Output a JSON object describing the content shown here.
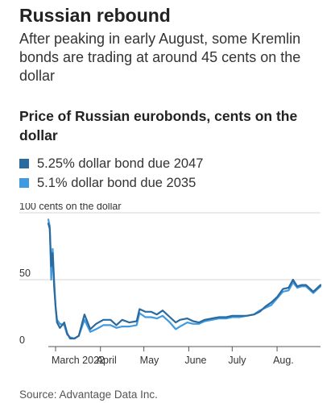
{
  "header": {
    "title": "Russian rebound",
    "subtitle": "After peaking in early August, some Kremlin bonds are trading at around 45 cents on the dollar",
    "source": "Source: Advantage Data Inc."
  },
  "chart_data": {
    "type": "line",
    "title": "Price of Russian eurobonds, cents on the dollar",
    "xlabel": "",
    "ylabel": "",
    "y_unit_label": "100 cents on the dollar",
    "ylim": [
      0,
      100
    ],
    "y_ticks": [
      {
        "value": 0,
        "label": "0"
      },
      {
        "value": 50,
        "label": "50"
      },
      {
        "value": 100,
        "label": "100 cents on the dollar"
      }
    ],
    "x_ticks": [
      {
        "value": "2022-03-01",
        "label": "March 2022"
      },
      {
        "value": "2022-04-01",
        "label": "April"
      },
      {
        "value": "2022-05-01",
        "label": "May"
      },
      {
        "value": "2022-06-01",
        "label": "June"
      },
      {
        "value": "2022-07-01",
        "label": "July"
      },
      {
        "value": "2022-08-01",
        "label": "Aug."
      }
    ],
    "xlim": [
      "2022-02-24",
      "2022-08-31"
    ],
    "grid": true,
    "legend_position": "top",
    "series": [
      {
        "name": "5.25% dollar bond due 2047",
        "color": "#2a6a9e",
        "points": [
          [
            "2022-02-24",
            92
          ],
          [
            "2022-02-25",
            88
          ],
          [
            "2022-02-26",
            60
          ],
          [
            "2022-02-27",
            70
          ],
          [
            "2022-02-28",
            45
          ],
          [
            "2022-03-01",
            30
          ],
          [
            "2022-03-02",
            18
          ],
          [
            "2022-03-04",
            14
          ],
          [
            "2022-03-07",
            18
          ],
          [
            "2022-03-09",
            10
          ],
          [
            "2022-03-11",
            6
          ],
          [
            "2022-03-14",
            6
          ],
          [
            "2022-03-17",
            8
          ],
          [
            "2022-03-21",
            24
          ],
          [
            "2022-03-25",
            13
          ],
          [
            "2022-03-29",
            17
          ],
          [
            "2022-04-03",
            20
          ],
          [
            "2022-04-08",
            20
          ],
          [
            "2022-04-12",
            16
          ],
          [
            "2022-04-16",
            20
          ],
          [
            "2022-04-21",
            18
          ],
          [
            "2022-04-26",
            19
          ],
          [
            "2022-04-28",
            28
          ],
          [
            "2022-05-02",
            26
          ],
          [
            "2022-05-06",
            26
          ],
          [
            "2022-05-10",
            24
          ],
          [
            "2022-05-14",
            27
          ],
          [
            "2022-05-19",
            22
          ],
          [
            "2022-05-23",
            18
          ],
          [
            "2022-05-26",
            20
          ],
          [
            "2022-05-31",
            21
          ],
          [
            "2022-06-04",
            19
          ],
          [
            "2022-06-08",
            18
          ],
          [
            "2022-06-12",
            20
          ],
          [
            "2022-06-17",
            21
          ],
          [
            "2022-06-22",
            22
          ],
          [
            "2022-06-27",
            22
          ],
          [
            "2022-07-01",
            23
          ],
          [
            "2022-07-06",
            23
          ],
          [
            "2022-07-11",
            23
          ],
          [
            "2022-07-16",
            24
          ],
          [
            "2022-07-20",
            26
          ],
          [
            "2022-07-24",
            30
          ],
          [
            "2022-07-28",
            33
          ],
          [
            "2022-08-01",
            37
          ],
          [
            "2022-08-05",
            43
          ],
          [
            "2022-08-09",
            44
          ],
          [
            "2022-08-12",
            50
          ],
          [
            "2022-08-15",
            45
          ],
          [
            "2022-08-18",
            46
          ],
          [
            "2022-08-21",
            46
          ],
          [
            "2022-08-24",
            43
          ],
          [
            "2022-08-26",
            41
          ],
          [
            "2022-08-29",
            44
          ],
          [
            "2022-08-31",
            46
          ]
        ]
      },
      {
        "name": "5.1% dollar bond due 2035",
        "color": "#3f9ae0",
        "points": [
          [
            "2022-02-24",
            95
          ],
          [
            "2022-02-25",
            90
          ],
          [
            "2022-02-26",
            50
          ],
          [
            "2022-02-27",
            73
          ],
          [
            "2022-02-28",
            50
          ],
          [
            "2022-03-01",
            30
          ],
          [
            "2022-03-02",
            20
          ],
          [
            "2022-03-04",
            17
          ],
          [
            "2022-03-07",
            16
          ],
          [
            "2022-03-09",
            9
          ],
          [
            "2022-03-11",
            7
          ],
          [
            "2022-03-14",
            6
          ],
          [
            "2022-03-17",
            8
          ],
          [
            "2022-03-21",
            20
          ],
          [
            "2022-03-25",
            11
          ],
          [
            "2022-03-29",
            13
          ],
          [
            "2022-04-03",
            16
          ],
          [
            "2022-04-08",
            16
          ],
          [
            "2022-04-12",
            14
          ],
          [
            "2022-04-16",
            15
          ],
          [
            "2022-04-21",
            15
          ],
          [
            "2022-04-26",
            16
          ],
          [
            "2022-04-28",
            25
          ],
          [
            "2022-05-02",
            22
          ],
          [
            "2022-05-06",
            22
          ],
          [
            "2022-05-10",
            21
          ],
          [
            "2022-05-14",
            23
          ],
          [
            "2022-05-19",
            18
          ],
          [
            "2022-05-23",
            13
          ],
          [
            "2022-05-26",
            15
          ],
          [
            "2022-05-31",
            18
          ],
          [
            "2022-06-04",
            17
          ],
          [
            "2022-06-08",
            17
          ],
          [
            "2022-06-12",
            19
          ],
          [
            "2022-06-17",
            20
          ],
          [
            "2022-06-22",
            21
          ],
          [
            "2022-06-27",
            21
          ],
          [
            "2022-07-01",
            22
          ],
          [
            "2022-07-06",
            22
          ],
          [
            "2022-07-11",
            23
          ],
          [
            "2022-07-16",
            24
          ],
          [
            "2022-07-20",
            27
          ],
          [
            "2022-07-24",
            29
          ],
          [
            "2022-07-28",
            31
          ],
          [
            "2022-08-01",
            36
          ],
          [
            "2022-08-05",
            41
          ],
          [
            "2022-08-09",
            42
          ],
          [
            "2022-08-12",
            48
          ],
          [
            "2022-08-15",
            44
          ],
          [
            "2022-08-18",
            45
          ],
          [
            "2022-08-21",
            45
          ],
          [
            "2022-08-24",
            42
          ],
          [
            "2022-08-26",
            40
          ],
          [
            "2022-08-29",
            43
          ],
          [
            "2022-08-31",
            45
          ]
        ]
      }
    ]
  }
}
